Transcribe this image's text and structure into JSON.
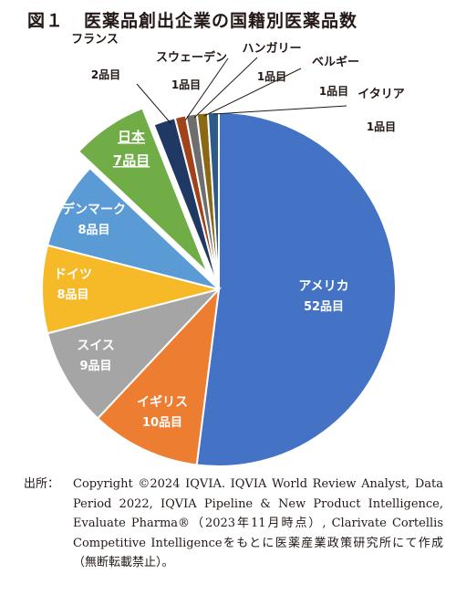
{
  "figure": {
    "number": "図１",
    "title": "医薬品創出企業の国籍別医薬品数"
  },
  "chart_data": {
    "type": "pie",
    "unit": "品目",
    "slices": [
      {
        "name": "アメリカ",
        "value": 52,
        "label": "52品目",
        "color": "#4472C4"
      },
      {
        "name": "イギリス",
        "value": 10,
        "label": "10品目",
        "color": "#ED7D31"
      },
      {
        "name": "スイス",
        "value": 9,
        "label": "9品目",
        "color": "#A5A5A5"
      },
      {
        "name": "ドイツ",
        "value": 8,
        "label": "8品目",
        "color": "#F6B928"
      },
      {
        "name": "デンマーク",
        "value": 8,
        "label": "8品目",
        "color": "#5B9BD5"
      },
      {
        "name": "日本",
        "value": 7,
        "label": "7品目",
        "color": "#70AD47",
        "exploded": true
      },
      {
        "name": "フランス",
        "value": 2,
        "label": "2品目",
        "color": "#1F3864"
      },
      {
        "name": "スウェーデン",
        "value": 1,
        "label": "1品目",
        "color": "#A0421A"
      },
      {
        "name": "ハンガリー",
        "value": 1,
        "label": "1品目",
        "color": "#6E6E6E"
      },
      {
        "name": "ベルギー",
        "value": 1,
        "label": "1品目",
        "color": "#8B6914"
      },
      {
        "name": "イタリア",
        "value": 1,
        "label": "1品目",
        "color": "#2E5A87"
      }
    ]
  },
  "source": {
    "label": "出所：",
    "text": "Copyright ©2024 IQVIA. IQVIA World Review Analyst, Data Period 2022, IQVIA Pipeline & New Product Intelligence, Evaluate Pharma®（2023年11月時点）, Clarivate Cortellis Competitive Intelligenceをもとに医薬産業政策研究所にて作成（無断転載禁止）。"
  }
}
